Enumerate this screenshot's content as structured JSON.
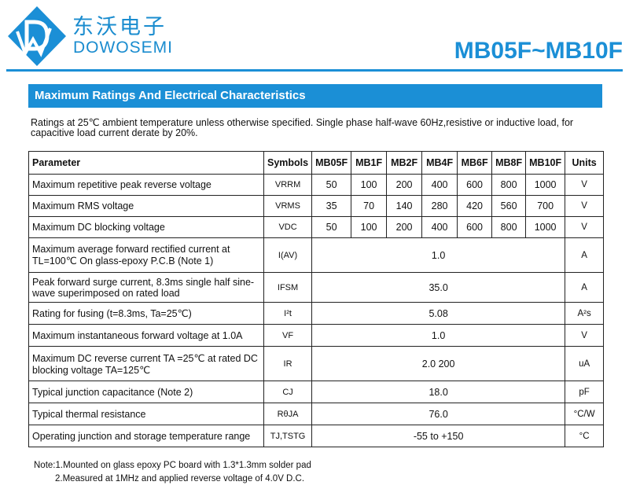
{
  "header": {
    "cn_name": "东沃电子",
    "en_name": "DOWOSEMI",
    "part_title": "MB05F~MB10F"
  },
  "section_title": "Maximum Ratings And Electrical Characteristics",
  "ratings_text": "Ratings at 25℃ ambient temperature unless otherwise specified. Single phase half-wave 60Hz,resistive or inductive load, for capacitive load current derate by 20%.",
  "table": {
    "headers": {
      "parameter": "Parameter",
      "symbols": "Symbols",
      "models": [
        "MB05F",
        "MB1F",
        "MB2F",
        "MB4F",
        "MB6F",
        "MB8F",
        "MB10F"
      ],
      "units": "Units"
    },
    "rows": [
      {
        "param": "Maximum repetitive peak reverse voltage",
        "sym": "VRRM",
        "vals": [
          "50",
          "100",
          "200",
          "400",
          "600",
          "800",
          "1000"
        ],
        "unit": "V"
      },
      {
        "param": "Maximum RMS voltage",
        "sym": "VRMS",
        "vals": [
          "35",
          "70",
          "140",
          "280",
          "420",
          "560",
          "700"
        ],
        "unit": "V"
      },
      {
        "param": "Maximum DC blocking voltage",
        "sym": "VDC",
        "vals": [
          "50",
          "100",
          "200",
          "400",
          "600",
          "800",
          "1000"
        ],
        "unit": "V"
      },
      {
        "param": "Maximum average forward rectified current at TL=100℃  On glass-epoxy P.C.B (Note 1)",
        "sym": "I(AV)",
        "value": "1.0",
        "unit": "A"
      },
      {
        "param": "Peak forward surge current, 8.3ms single half sine-wave superimposed on rated load",
        "sym": "IFSM",
        "value": "35.0",
        "unit": "A"
      },
      {
        "param": "Rating for fusing (t=8.3ms, Ta=25℃)",
        "sym": "I²t",
        "value": "5.08",
        "unit": "A²s"
      },
      {
        "param": "Maximum instantaneous forward voltage at 1.0A",
        "sym": "VF",
        "value": "1.0",
        "unit": "V"
      },
      {
        "param": "Maximum DC reverse current    TA =25℃ at rated DC blocking voltage    TA=125℃",
        "sym": "IR",
        "value": "2.0 200",
        "unit": "uA"
      },
      {
        "param": "Typical junction capacitance (Note 2)",
        "sym": "CJ",
        "value": "18.0",
        "unit": "pF"
      },
      {
        "param": "Typical thermal resistance",
        "sym": "RθJA",
        "value": "76.0",
        "unit": "°C/W"
      },
      {
        "param": "Operating junction and storage temperature range",
        "sym": "TJ,TSTG",
        "value": "-55 to +150",
        "unit": "°C"
      }
    ]
  },
  "notes": [
    "Note:1.Mounted on glass epoxy PC board with 1.3*1.3mm solder pad",
    "2.Measured at 1MHz and applied reverse voltage of 4.0V D.C."
  ],
  "colors": {
    "brand": "#1b8fd6"
  }
}
